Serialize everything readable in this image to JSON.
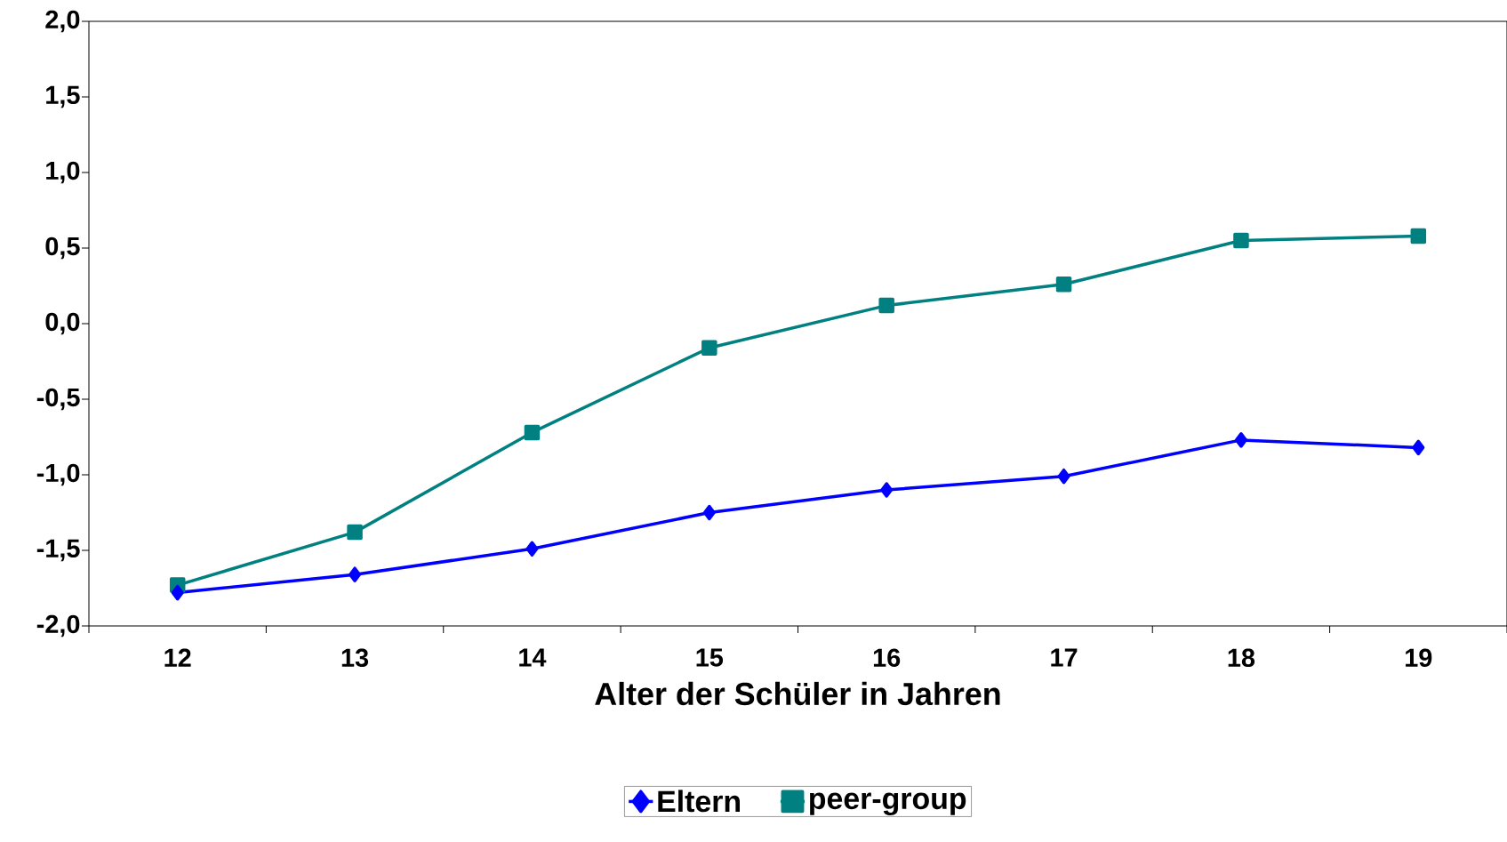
{
  "chart_data": {
    "type": "line",
    "xlabel": "Alter der Schüler in Jahren",
    "categories": [
      "12",
      "13",
      "14",
      "15",
      "16",
      "17",
      "18",
      "19"
    ],
    "series": [
      {
        "name": "Eltern",
        "color": "#0000ff",
        "marker": "diamond",
        "values": [
          -1.78,
          -1.66,
          -1.49,
          -1.25,
          -1.1,
          -1.01,
          -0.77,
          -0.82
        ]
      },
      {
        "name": "peer-group",
        "color": "#008080",
        "marker": "square",
        "values": [
          -1.73,
          -1.38,
          -0.72,
          -0.16,
          0.12,
          0.26,
          0.55,
          0.58
        ]
      }
    ],
    "ylim": [
      -2.0,
      2.0
    ],
    "yticks": [
      {
        "value": -2.0,
        "label": "-2,0"
      },
      {
        "value": -1.5,
        "label": "-1,5"
      },
      {
        "value": -1.0,
        "label": "-1,0"
      },
      {
        "value": -0.5,
        "label": "-0,5"
      },
      {
        "value": 0.0,
        "label": "0,0"
      },
      {
        "value": 0.5,
        "label": "0,5"
      },
      {
        "value": 1.0,
        "label": "1,0"
      },
      {
        "value": 1.5,
        "label": "1,5"
      },
      {
        "value": 2.0,
        "label": "2,0"
      }
    ],
    "grid": false,
    "legend": "bottom",
    "line_style": "solid"
  }
}
